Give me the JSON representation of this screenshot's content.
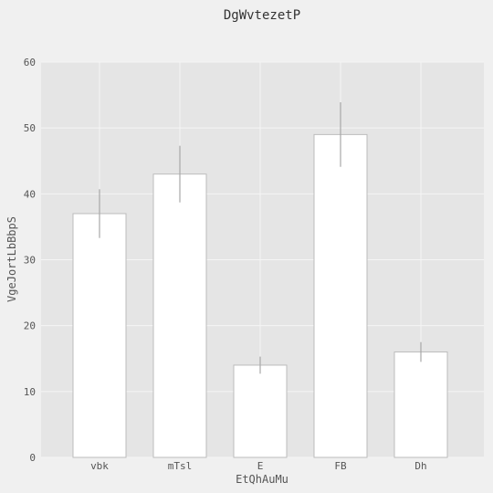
{
  "chart_data": {
    "type": "bar",
    "title": "DgWvtezetP",
    "xlabel": "EtQhAuMu",
    "ylabel": "VgeJortLbBbpS",
    "categories": [
      "vbk",
      "mTsl",
      "E",
      "FB",
      "Dh"
    ],
    "values": [
      37,
      43,
      14,
      49,
      16
    ],
    "error": [
      3.7,
      4.3,
      1.3,
      4.9,
      1.5
    ],
    "ylim": [
      0,
      60
    ],
    "yticks": [
      0,
      10,
      20,
      30,
      40,
      50,
      60
    ],
    "grid": true,
    "colors": {
      "plot_background": "#e5e5e5",
      "page_background": "#f0f0f0",
      "bar_fill": "#ffffff",
      "bar_edge": "#bcbcbc",
      "error_bar": "#a8a8a8",
      "grid": "#f5f5f5"
    }
  }
}
